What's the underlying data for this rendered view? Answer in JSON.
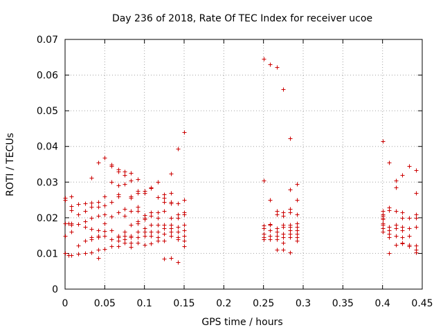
{
  "chart_data": {
    "type": "scatter",
    "title": "Day 236 of 2018, Rate Of TEC Index for receiver ucoe",
    "xlabel": "GPS time / hours",
    "ylabel": "ROTI / TECUs",
    "xlim": [
      0,
      0.45
    ],
    "ylim": [
      0,
      0.07
    ],
    "x_ticks": [
      "0",
      "0.05",
      "0.1",
      "0.15",
      "0.2",
      "0.25",
      "0.3",
      "0.35",
      "0.4",
      "0.45"
    ],
    "y_ticks": [
      "0",
      "0.01",
      "0.02",
      "0.03",
      "0.04",
      "0.05",
      "0.06",
      "0.07"
    ],
    "grid": true,
    "marker": "+",
    "marker_color": "#cc0000",
    "series": [
      {
        "points": [
          [
            0.0,
            0.0255
          ],
          [
            0.0,
            0.025
          ],
          [
            0.0,
            0.0185
          ],
          [
            0.0,
            0.015
          ],
          [
            0.0,
            0.01
          ],
          [
            0.004,
            0.0185
          ],
          [
            0.004,
            0.0095
          ],
          [
            0.008,
            0.026
          ],
          [
            0.008,
            0.0232
          ],
          [
            0.008,
            0.0222
          ],
          [
            0.008,
            0.0185
          ],
          [
            0.008,
            0.018
          ],
          [
            0.008,
            0.016
          ],
          [
            0.008,
            0.0095
          ],
          [
            0.017,
            0.0238
          ],
          [
            0.017,
            0.021
          ],
          [
            0.017,
            0.0183
          ],
          [
            0.017,
            0.0123
          ],
          [
            0.017,
            0.0098
          ],
          [
            0.025,
            0.024
          ],
          [
            0.025,
            0.022
          ],
          [
            0.025,
            0.019
          ],
          [
            0.025,
            0.0175
          ],
          [
            0.025,
            0.0135
          ],
          [
            0.025,
            0.01
          ],
          [
            0.033,
            0.0313
          ],
          [
            0.033,
            0.0243
          ],
          [
            0.033,
            0.023
          ],
          [
            0.033,
            0.02
          ],
          [
            0.033,
            0.0168
          ],
          [
            0.033,
            0.0145
          ],
          [
            0.033,
            0.014
          ],
          [
            0.033,
            0.0103
          ],
          [
            0.042,
            0.0355
          ],
          [
            0.042,
            0.0245
          ],
          [
            0.042,
            0.023
          ],
          [
            0.042,
            0.0205
          ],
          [
            0.042,
            0.0165
          ],
          [
            0.042,
            0.015
          ],
          [
            0.042,
            0.0145
          ],
          [
            0.042,
            0.011
          ],
          [
            0.042,
            0.0088
          ],
          [
            0.05,
            0.0368
          ],
          [
            0.05,
            0.026
          ],
          [
            0.05,
            0.0235
          ],
          [
            0.05,
            0.021
          ],
          [
            0.05,
            0.0185
          ],
          [
            0.05,
            0.0163
          ],
          [
            0.05,
            0.015
          ],
          [
            0.05,
            0.0113
          ],
          [
            0.058,
            0.035
          ],
          [
            0.058,
            0.0345
          ],
          [
            0.058,
            0.03
          ],
          [
            0.058,
            0.0245
          ],
          [
            0.058,
            0.0203
          ],
          [
            0.058,
            0.0165
          ],
          [
            0.058,
            0.014
          ],
          [
            0.058,
            0.012
          ],
          [
            0.067,
            0.0335
          ],
          [
            0.067,
            0.033
          ],
          [
            0.067,
            0.029
          ],
          [
            0.067,
            0.0265
          ],
          [
            0.067,
            0.026
          ],
          [
            0.067,
            0.0215
          ],
          [
            0.067,
            0.015
          ],
          [
            0.067,
            0.0145
          ],
          [
            0.067,
            0.0135
          ],
          [
            0.067,
            0.012
          ],
          [
            0.075,
            0.033
          ],
          [
            0.075,
            0.032
          ],
          [
            0.075,
            0.0295
          ],
          [
            0.075,
            0.0225
          ],
          [
            0.075,
            0.0205
          ],
          [
            0.075,
            0.016
          ],
          [
            0.075,
            0.015
          ],
          [
            0.075,
            0.014
          ],
          [
            0.075,
            0.013
          ],
          [
            0.083,
            0.0325
          ],
          [
            0.083,
            0.0305
          ],
          [
            0.083,
            0.026
          ],
          [
            0.083,
            0.0255
          ],
          [
            0.083,
            0.022
          ],
          [
            0.083,
            0.018
          ],
          [
            0.083,
            0.015
          ],
          [
            0.083,
            0.0145
          ],
          [
            0.083,
            0.013
          ],
          [
            0.083,
            0.0118
          ],
          [
            0.092,
            0.0308
          ],
          [
            0.092,
            0.0275
          ],
          [
            0.092,
            0.027
          ],
          [
            0.092,
            0.023
          ],
          [
            0.092,
            0.022
          ],
          [
            0.092,
            0.019
          ],
          [
            0.092,
            0.0185
          ],
          [
            0.092,
            0.016
          ],
          [
            0.092,
            0.0145
          ],
          [
            0.092,
            0.013
          ],
          [
            0.1,
            0.0275
          ],
          [
            0.1,
            0.027
          ],
          [
            0.1,
            0.0208
          ],
          [
            0.1,
            0.02
          ],
          [
            0.1,
            0.0195
          ],
          [
            0.1,
            0.017
          ],
          [
            0.1,
            0.016
          ],
          [
            0.1,
            0.015
          ],
          [
            0.1,
            0.0125
          ],
          [
            0.108,
            0.0285
          ],
          [
            0.108,
            0.0283
          ],
          [
            0.108,
            0.0215
          ],
          [
            0.108,
            0.0205
          ],
          [
            0.108,
            0.018
          ],
          [
            0.108,
            0.016
          ],
          [
            0.108,
            0.015
          ],
          [
            0.108,
            0.0128
          ],
          [
            0.117,
            0.03
          ],
          [
            0.117,
            0.0258
          ],
          [
            0.117,
            0.0215
          ],
          [
            0.117,
            0.02
          ],
          [
            0.117,
            0.018
          ],
          [
            0.117,
            0.016
          ],
          [
            0.117,
            0.0145
          ],
          [
            0.117,
            0.0135
          ],
          [
            0.125,
            0.0265
          ],
          [
            0.125,
            0.0255
          ],
          [
            0.125,
            0.0245
          ],
          [
            0.125,
            0.022
          ],
          [
            0.125,
            0.018
          ],
          [
            0.125,
            0.017
          ],
          [
            0.125,
            0.0155
          ],
          [
            0.125,
            0.0135
          ],
          [
            0.125,
            0.0085
          ],
          [
            0.133,
            0.0323
          ],
          [
            0.133,
            0.027
          ],
          [
            0.133,
            0.0245
          ],
          [
            0.133,
            0.024
          ],
          [
            0.133,
            0.02
          ],
          [
            0.133,
            0.018
          ],
          [
            0.133,
            0.017
          ],
          [
            0.133,
            0.016
          ],
          [
            0.133,
            0.015
          ],
          [
            0.133,
            0.0088
          ],
          [
            0.142,
            0.0393
          ],
          [
            0.142,
            0.024
          ],
          [
            0.142,
            0.021
          ],
          [
            0.142,
            0.02
          ],
          [
            0.142,
            0.0175
          ],
          [
            0.142,
            0.016
          ],
          [
            0.142,
            0.0145
          ],
          [
            0.142,
            0.014
          ],
          [
            0.142,
            0.0075
          ],
          [
            0.15,
            0.044
          ],
          [
            0.15,
            0.025
          ],
          [
            0.15,
            0.0215
          ],
          [
            0.15,
            0.021
          ],
          [
            0.15,
            0.018
          ],
          [
            0.15,
            0.0165
          ],
          [
            0.15,
            0.015
          ],
          [
            0.15,
            0.0135
          ],
          [
            0.15,
            0.012
          ],
          [
            0.25,
            0.0645
          ],
          [
            0.25,
            0.0305
          ],
          [
            0.25,
            0.0178
          ],
          [
            0.25,
            0.017
          ],
          [
            0.25,
            0.0155
          ],
          [
            0.25,
            0.0145
          ],
          [
            0.25,
            0.014
          ],
          [
            0.258,
            0.063
          ],
          [
            0.258,
            0.025
          ],
          [
            0.258,
            0.0183
          ],
          [
            0.258,
            0.018
          ],
          [
            0.258,
            0.0165
          ],
          [
            0.258,
            0.015
          ],
          [
            0.258,
            0.014
          ],
          [
            0.267,
            0.0623
          ],
          [
            0.267,
            0.022
          ],
          [
            0.267,
            0.021
          ],
          [
            0.267,
            0.017
          ],
          [
            0.267,
            0.016
          ],
          [
            0.267,
            0.015
          ],
          [
            0.267,
            0.014
          ],
          [
            0.267,
            0.011
          ],
          [
            0.275,
            0.056
          ],
          [
            0.275,
            0.0215
          ],
          [
            0.275,
            0.0205
          ],
          [
            0.275,
            0.018
          ],
          [
            0.275,
            0.0175
          ],
          [
            0.275,
            0.0155
          ],
          [
            0.275,
            0.0145
          ],
          [
            0.275,
            0.013
          ],
          [
            0.275,
            0.011
          ],
          [
            0.283,
            0.0422
          ],
          [
            0.283,
            0.028
          ],
          [
            0.283,
            0.0225
          ],
          [
            0.283,
            0.0215
          ],
          [
            0.283,
            0.018
          ],
          [
            0.283,
            0.0175
          ],
          [
            0.283,
            0.0165
          ],
          [
            0.283,
            0.0155
          ],
          [
            0.283,
            0.0145
          ],
          [
            0.283,
            0.0103
          ],
          [
            0.292,
            0.0295
          ],
          [
            0.292,
            0.025
          ],
          [
            0.292,
            0.021
          ],
          [
            0.292,
            0.0185
          ],
          [
            0.292,
            0.0175
          ],
          [
            0.292,
            0.0165
          ],
          [
            0.292,
            0.0155
          ],
          [
            0.292,
            0.0145
          ],
          [
            0.292,
            0.0135
          ],
          [
            0.4,
            0.0415
          ],
          [
            0.4,
            0.022
          ],
          [
            0.4,
            0.021
          ],
          [
            0.4,
            0.0205
          ],
          [
            0.4,
            0.02
          ],
          [
            0.4,
            0.0195
          ],
          [
            0.4,
            0.0185
          ],
          [
            0.4,
            0.018
          ],
          [
            0.4,
            0.017
          ],
          [
            0.4,
            0.016
          ],
          [
            0.408,
            0.0355
          ],
          [
            0.408,
            0.0228
          ],
          [
            0.408,
            0.0222
          ],
          [
            0.408,
            0.0175
          ],
          [
            0.408,
            0.0165
          ],
          [
            0.408,
            0.0155
          ],
          [
            0.408,
            0.0145
          ],
          [
            0.408,
            0.01
          ],
          [
            0.417,
            0.0305
          ],
          [
            0.417,
            0.0285
          ],
          [
            0.417,
            0.022
          ],
          [
            0.417,
            0.018
          ],
          [
            0.417,
            0.017
          ],
          [
            0.417,
            0.015
          ],
          [
            0.417,
            0.0125
          ],
          [
            0.425,
            0.032
          ],
          [
            0.425,
            0.0215
          ],
          [
            0.425,
            0.02
          ],
          [
            0.425,
            0.0175
          ],
          [
            0.425,
            0.0165
          ],
          [
            0.425,
            0.0145
          ],
          [
            0.425,
            0.013
          ],
          [
            0.425,
            0.0128
          ],
          [
            0.433,
            0.0345
          ],
          [
            0.433,
            0.02
          ],
          [
            0.433,
            0.017
          ],
          [
            0.433,
            0.015
          ],
          [
            0.433,
            0.0125
          ],
          [
            0.433,
            0.012
          ],
          [
            0.442,
            0.0333
          ],
          [
            0.442,
            0.027
          ],
          [
            0.442,
            0.021
          ],
          [
            0.442,
            0.02
          ],
          [
            0.442,
            0.0175
          ],
          [
            0.442,
            0.0123
          ],
          [
            0.442,
            0.011
          ],
          [
            0.442,
            0.0103
          ]
        ]
      }
    ]
  }
}
